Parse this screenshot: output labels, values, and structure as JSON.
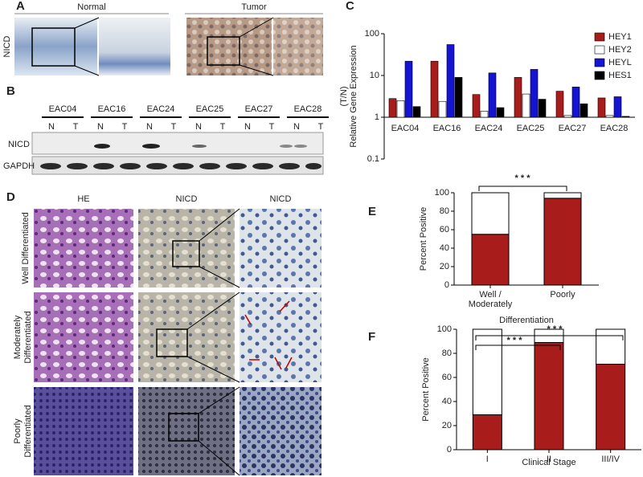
{
  "panel_labels": [
    "A",
    "B",
    "C",
    "D",
    "E",
    "F"
  ],
  "panel_a": {
    "groups": [
      "Normal",
      "Tumor"
    ],
    "row_label": "NICD"
  },
  "panel_b": {
    "samples": [
      "EAC04",
      "EAC16",
      "EAC24",
      "EAC25",
      "EAC27",
      "EAC28"
    ],
    "lanes": [
      "N",
      "T"
    ],
    "rows": [
      "NICD",
      "GAPDH"
    ]
  },
  "panel_d": {
    "columns": [
      "HE",
      "NICD",
      "NICD"
    ],
    "rows": [
      [
        "Well Differentiated"
      ],
      [
        "Moderately",
        "Differentiated"
      ],
      [
        "Poorly",
        "Differentiated"
      ]
    ]
  },
  "chart_data": [
    {
      "type": "bar",
      "log_scale": true,
      "ylabel": [
        "Relative Gene Expression",
        "(T/N)"
      ],
      "categories": [
        "EAC04",
        "EAC16",
        "EAC24",
        "EAC25",
        "EAC27",
        "EAC28"
      ],
      "series": [
        {
          "name": "HEY1",
          "color": "#a81c1c",
          "values": [
            2.8,
            22,
            3.5,
            9,
            4.2,
            2.9
          ]
        },
        {
          "name": "HEY2",
          "color": "#ffffff",
          "values": [
            2.5,
            2.4,
            1.4,
            3.6,
            1.1,
            1.1
          ]
        },
        {
          "name": "HEYL",
          "color": "#1414d2",
          "values": [
            22,
            55,
            11.5,
            14,
            5.3,
            3.1
          ]
        },
        {
          "name": "HES1",
          "color": "#000000",
          "values": [
            1.8,
            9,
            1.7,
            2.7,
            2.1,
            1.05
          ]
        }
      ],
      "ylim": [
        0.1,
        100
      ],
      "yticks": [
        0.1,
        1,
        10,
        100
      ],
      "legend": "upper right"
    },
    {
      "type": "bar",
      "stacked": true,
      "ylabel": "Percent Positive",
      "xlabel": "Differentiation",
      "categories": [
        "Well / Moderately",
        "Poorly"
      ],
      "series": [
        {
          "color": "#a81c1c",
          "values": [
            55,
            94
          ]
        },
        {
          "color": "#ffffff",
          "values": [
            45,
            6
          ]
        }
      ],
      "ylim": [
        0,
        100
      ],
      "yticks": [
        0,
        20,
        40,
        60,
        80,
        100
      ],
      "annotations": [
        "* * *"
      ]
    },
    {
      "type": "bar",
      "stacked": true,
      "ylabel": "Percent Positive",
      "xlabel": "Clinical Stage",
      "categories": [
        "I",
        "II",
        "III/IV"
      ],
      "series": [
        {
          "color": "#a81c1c",
          "values": [
            29,
            89,
            71
          ]
        },
        {
          "color": "#ffffff",
          "values": [
            71,
            11,
            29
          ]
        }
      ],
      "ylim": [
        0,
        100
      ],
      "yticks": [
        0,
        20,
        40,
        60,
        80,
        100
      ],
      "annotations": [
        "* * *",
        "* * *"
      ]
    }
  ]
}
